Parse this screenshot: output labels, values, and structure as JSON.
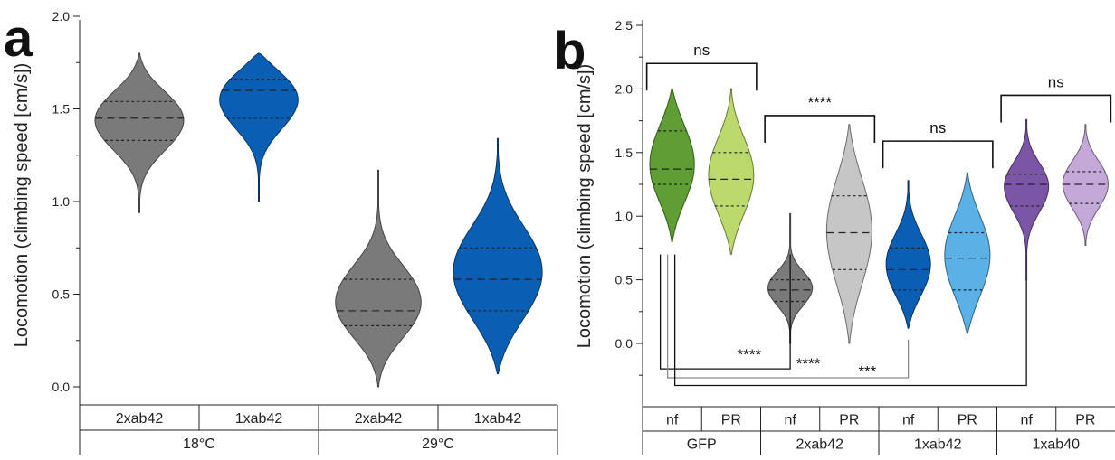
{
  "chart_data": [
    {
      "panel": "a",
      "type": "violin",
      "ylabel": "Locomotion (climbing speed [cm/s])",
      "ylim": [
        0.0,
        2.0
      ],
      "yticks": [
        "0.0",
        "0.5",
        "1.0",
        "1.5",
        "2.0"
      ],
      "categories": [
        "2xab42",
        "1xab42",
        "2xab42",
        "1xab42"
      ],
      "groups": [
        {
          "label": "18°C",
          "span": [
            0,
            1
          ]
        },
        {
          "label": "29°C",
          "span": [
            2,
            3
          ]
        }
      ],
      "series": [
        {
          "category": "2xab42",
          "group": "18°C",
          "color": "#7a7a7a",
          "min": 0.94,
          "max": 1.8,
          "q1": 1.33,
          "median": 1.45,
          "q3": 1.54
        },
        {
          "category": "1xab42",
          "group": "18°C",
          "color": "#0a5fb4",
          "min": 1.0,
          "max": 1.8,
          "q1": 1.45,
          "median": 1.6,
          "q3": 1.66
        },
        {
          "category": "2xab42",
          "group": "29°C",
          "color": "#7a7a7a",
          "min": 0.0,
          "max": 1.17,
          "q1": 0.33,
          "median": 0.41,
          "q3": 0.58
        },
        {
          "category": "1xab42",
          "group": "29°C",
          "color": "#0a5fb4",
          "min": 0.07,
          "max": 1.34,
          "q1": 0.41,
          "median": 0.58,
          "q3": 0.75
        }
      ]
    },
    {
      "panel": "b",
      "type": "violin",
      "ylabel": "Locomotion (climbing speed [cm/s])",
      "ylim": [
        -0.35,
        2.5
      ],
      "yticks": [
        "0.0",
        "0.5",
        "1.0",
        "1.5",
        "2.0",
        "2.5"
      ],
      "categories": [
        "nf",
        "PR",
        "nf",
        "PR",
        "nf",
        "PR",
        "nf",
        "PR"
      ],
      "groups": [
        {
          "label": "GFP",
          "span": [
            0,
            1
          ]
        },
        {
          "label": "2xab42",
          "span": [
            2,
            3
          ]
        },
        {
          "label": "1xab42",
          "span": [
            4,
            5
          ]
        },
        {
          "label": "1xab40",
          "span": [
            6,
            7
          ]
        }
      ],
      "series": [
        {
          "category": "nf",
          "group": "GFP",
          "color": "#5e9e34",
          "min": 0.8,
          "max": 2.0,
          "q1": 1.25,
          "median": 1.37,
          "q3": 1.67
        },
        {
          "category": "PR",
          "group": "GFP",
          "color": "#bcd96b",
          "min": 0.7,
          "max": 2.0,
          "q1": 1.08,
          "median": 1.29,
          "q3": 1.5
        },
        {
          "category": "nf",
          "group": "2xab42",
          "color": "#7a7a7a",
          "min": 0.0,
          "max": 1.02,
          "q1": 0.33,
          "median": 0.42,
          "q3": 0.5
        },
        {
          "category": "PR",
          "group": "2xab42",
          "color": "#c6c6c6",
          "min": 0.0,
          "max": 1.72,
          "q1": 0.58,
          "median": 0.87,
          "q3": 1.16
        },
        {
          "category": "nf",
          "group": "1xab42",
          "color": "#0a5fb4",
          "min": 0.12,
          "max": 1.28,
          "q1": 0.42,
          "median": 0.58,
          "q3": 0.75
        },
        {
          "category": "PR",
          "group": "1xab42",
          "color": "#5bb0e6",
          "min": 0.08,
          "max": 1.34,
          "q1": 0.42,
          "median": 0.67,
          "q3": 0.87
        },
        {
          "category": "nf",
          "group": "1xab40",
          "color": "#7c56a6",
          "min": 0.5,
          "max": 1.76,
          "q1": 1.08,
          "median": 1.25,
          "q3": 1.33
        },
        {
          "category": "PR",
          "group": "1xab40",
          "color": "#c4a8d8",
          "min": 0.77,
          "max": 1.72,
          "q1": 1.1,
          "median": 1.25,
          "q3": 1.35
        }
      ],
      "annotations": [
        {
          "text": "ns",
          "between": [
            0,
            1
          ],
          "color": "#111111"
        },
        {
          "text": "****",
          "between": [
            2,
            3
          ],
          "color": "#111111"
        },
        {
          "text": "ns",
          "between": [
            4,
            5
          ],
          "color": "#111111"
        },
        {
          "text": "ns",
          "between": [
            6,
            7
          ],
          "color": "#111111"
        },
        {
          "text": "****",
          "between": [
            0,
            2
          ],
          "color": "#111111"
        },
        {
          "text": "****",
          "between": [
            0,
            4
          ],
          "color": "#8a8a8a"
        },
        {
          "text": "***",
          "between": [
            0,
            6
          ],
          "color": "#111111"
        }
      ]
    }
  ],
  "panels": {
    "a": "a",
    "b": "b"
  }
}
